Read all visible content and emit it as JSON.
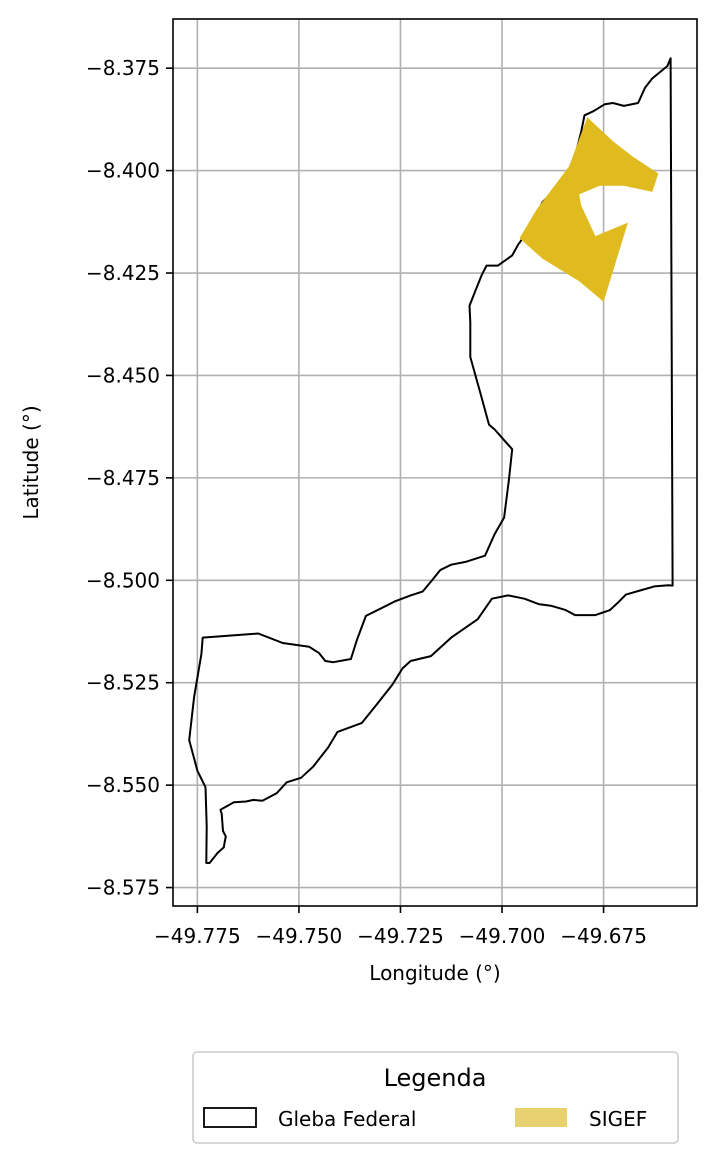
{
  "chart_data": {
    "type": "map",
    "xlabel": "Longitude (°)",
    "ylabel": "Latitude (°)",
    "xlim": [
      -49.781,
      -49.652
    ],
    "ylim": [
      -8.5795,
      -8.363
    ],
    "xticks": [
      -49.775,
      -49.75,
      -49.725,
      -49.7,
      -49.675
    ],
    "xtick_labels": [
      "−49.775",
      "−49.750",
      "−49.725",
      "−49.700",
      "−49.675"
    ],
    "yticks": [
      -8.375,
      -8.4,
      -8.425,
      -8.45,
      -8.475,
      -8.5,
      -8.525,
      -8.55,
      -8.575
    ],
    "ytick_labels": [
      "−8.375",
      "−8.400",
      "−8.425",
      "−8.450",
      "−8.475",
      "−8.500",
      "−8.525",
      "−8.550",
      "−8.575"
    ],
    "grid": true,
    "legend": {
      "title": "Legenda",
      "placement": "below",
      "entries": [
        {
          "label": "Gleba Federal",
          "style": "outline",
          "edge_color": "#000000",
          "face_color": "none"
        },
        {
          "label": "SIGEF",
          "style": "filled",
          "face_color": "#e8d170"
        }
      ]
    },
    "series": [
      {
        "name": "Gleba Federal",
        "kind": "outline",
        "color": "#000000",
        "points": [
          [
            -49.6585,
            -8.3726
          ],
          [
            -49.6593,
            -8.3745
          ],
          [
            -49.663,
            -8.3775
          ],
          [
            -49.6648,
            -8.3798
          ],
          [
            -49.6665,
            -8.3835
          ],
          [
            -49.67,
            -8.3842
          ],
          [
            -49.6727,
            -8.3835
          ],
          [
            -49.6747,
            -8.3838
          ],
          [
            -49.6775,
            -8.3855
          ],
          [
            -49.6797,
            -8.3865
          ],
          [
            -49.6805,
            -8.3905
          ],
          [
            -49.6818,
            -8.3955
          ],
          [
            -49.684,
            -8.401
          ],
          [
            -49.687,
            -8.4047
          ],
          [
            -49.69,
            -8.4077
          ],
          [
            -49.6915,
            -8.4107
          ],
          [
            -49.6935,
            -8.4147
          ],
          [
            -49.696,
            -8.418
          ],
          [
            -49.6975,
            -8.4207
          ],
          [
            -49.701,
            -8.4232
          ],
          [
            -49.7038,
            -8.4232
          ],
          [
            -49.705,
            -8.4255
          ],
          [
            -49.7065,
            -8.4292
          ],
          [
            -49.708,
            -8.433
          ],
          [
            -49.7078,
            -8.437
          ],
          [
            -49.7078,
            -8.4455
          ],
          [
            -49.7055,
            -8.4537
          ],
          [
            -49.7032,
            -8.462
          ],
          [
            -49.7018,
            -8.4632
          ],
          [
            -49.6995,
            -8.4658
          ],
          [
            -49.6975,
            -8.468
          ],
          [
            -49.6983,
            -8.4755
          ],
          [
            -49.6995,
            -8.4847
          ],
          [
            -49.7018,
            -8.4887
          ],
          [
            -49.7042,
            -8.494
          ],
          [
            -49.709,
            -8.4955
          ],
          [
            -49.7125,
            -8.4962
          ],
          [
            -49.7152,
            -8.4975
          ],
          [
            -49.717,
            -8.4997
          ],
          [
            -49.7195,
            -8.5027
          ],
          [
            -49.7225,
            -8.5037
          ],
          [
            -49.7265,
            -8.5052
          ],
          [
            -49.7335,
            -8.5087
          ],
          [
            -49.7357,
            -8.5145
          ],
          [
            -49.7372,
            -8.5192
          ],
          [
            -49.7415,
            -8.52
          ],
          [
            -49.7435,
            -8.5197
          ],
          [
            -49.745,
            -8.5178
          ],
          [
            -49.7475,
            -8.5162
          ],
          [
            -49.754,
            -8.5153
          ],
          [
            -49.76,
            -8.513
          ],
          [
            -49.7737,
            -8.514
          ],
          [
            -49.774,
            -8.518
          ],
          [
            -49.7758,
            -8.5285
          ],
          [
            -49.777,
            -8.539
          ],
          [
            -49.775,
            -8.5465
          ],
          [
            -49.773,
            -8.5505
          ],
          [
            -49.7727,
            -8.56
          ],
          [
            -49.7728,
            -8.569
          ],
          [
            -49.772,
            -8.569
          ],
          [
            -49.77,
            -8.5665
          ],
          [
            -49.7685,
            -8.5652
          ],
          [
            -49.7683,
            -8.564
          ],
          [
            -49.768,
            -8.5625
          ],
          [
            -49.7687,
            -8.5612
          ],
          [
            -49.769,
            -8.557
          ],
          [
            -49.7693,
            -8.556
          ],
          [
            -49.766,
            -8.5542
          ],
          [
            -49.763,
            -8.554
          ],
          [
            -49.7612,
            -8.5536
          ],
          [
            -49.759,
            -8.5538
          ],
          [
            -49.7555,
            -8.552
          ],
          [
            -49.753,
            -8.5493
          ],
          [
            -49.7495,
            -8.5482
          ],
          [
            -49.7465,
            -8.5455
          ],
          [
            -49.7428,
            -8.5408
          ],
          [
            -49.7405,
            -8.537
          ],
          [
            -49.7345,
            -8.5348
          ],
          [
            -49.731,
            -8.5305
          ],
          [
            -49.727,
            -8.5255
          ],
          [
            -49.7245,
            -8.5215
          ],
          [
            -49.7225,
            -8.5197
          ],
          [
            -49.7175,
            -8.5185
          ],
          [
            -49.7125,
            -8.514
          ],
          [
            -49.706,
            -8.5095
          ],
          [
            -49.7025,
            -8.5045
          ],
          [
            -49.6985,
            -8.5037
          ],
          [
            -49.6945,
            -8.5045
          ],
          [
            -49.691,
            -8.5058
          ],
          [
            -49.688,
            -8.5062
          ],
          [
            -49.6845,
            -8.5072
          ],
          [
            -49.682,
            -8.5085
          ],
          [
            -49.6795,
            -8.5085
          ],
          [
            -49.677,
            -8.5085
          ],
          [
            -49.6735,
            -8.5073
          ],
          [
            -49.6715,
            -8.5055
          ],
          [
            -49.6695,
            -8.5035
          ],
          [
            -49.666,
            -8.5025
          ],
          [
            -49.6625,
            -8.5015
          ],
          [
            -49.659,
            -8.5012
          ],
          [
            -49.658,
            -8.5013
          ],
          [
            -49.6585,
            -8.3726
          ]
        ]
      },
      {
        "name": "SIGEF",
        "kind": "filled",
        "color": "#dfbb1f",
        "points": [
          [
            -49.679,
            -8.387
          ],
          [
            -49.6725,
            -8.393
          ],
          [
            -49.6675,
            -8.3968
          ],
          [
            -49.6615,
            -8.4007
          ],
          [
            -49.663,
            -8.4052
          ],
          [
            -49.67,
            -8.4037
          ],
          [
            -49.676,
            -8.4037
          ],
          [
            -49.681,
            -8.4058
          ],
          [
            -49.6805,
            -8.4085
          ],
          [
            -49.677,
            -8.416
          ],
          [
            -49.669,
            -8.4127
          ],
          [
            -49.675,
            -8.432
          ],
          [
            -49.681,
            -8.427
          ],
          [
            -49.69,
            -8.4215
          ],
          [
            -49.6957,
            -8.4165
          ],
          [
            -49.6915,
            -8.4095
          ],
          [
            -49.6835,
            -8.399
          ]
        ]
      }
    ]
  }
}
